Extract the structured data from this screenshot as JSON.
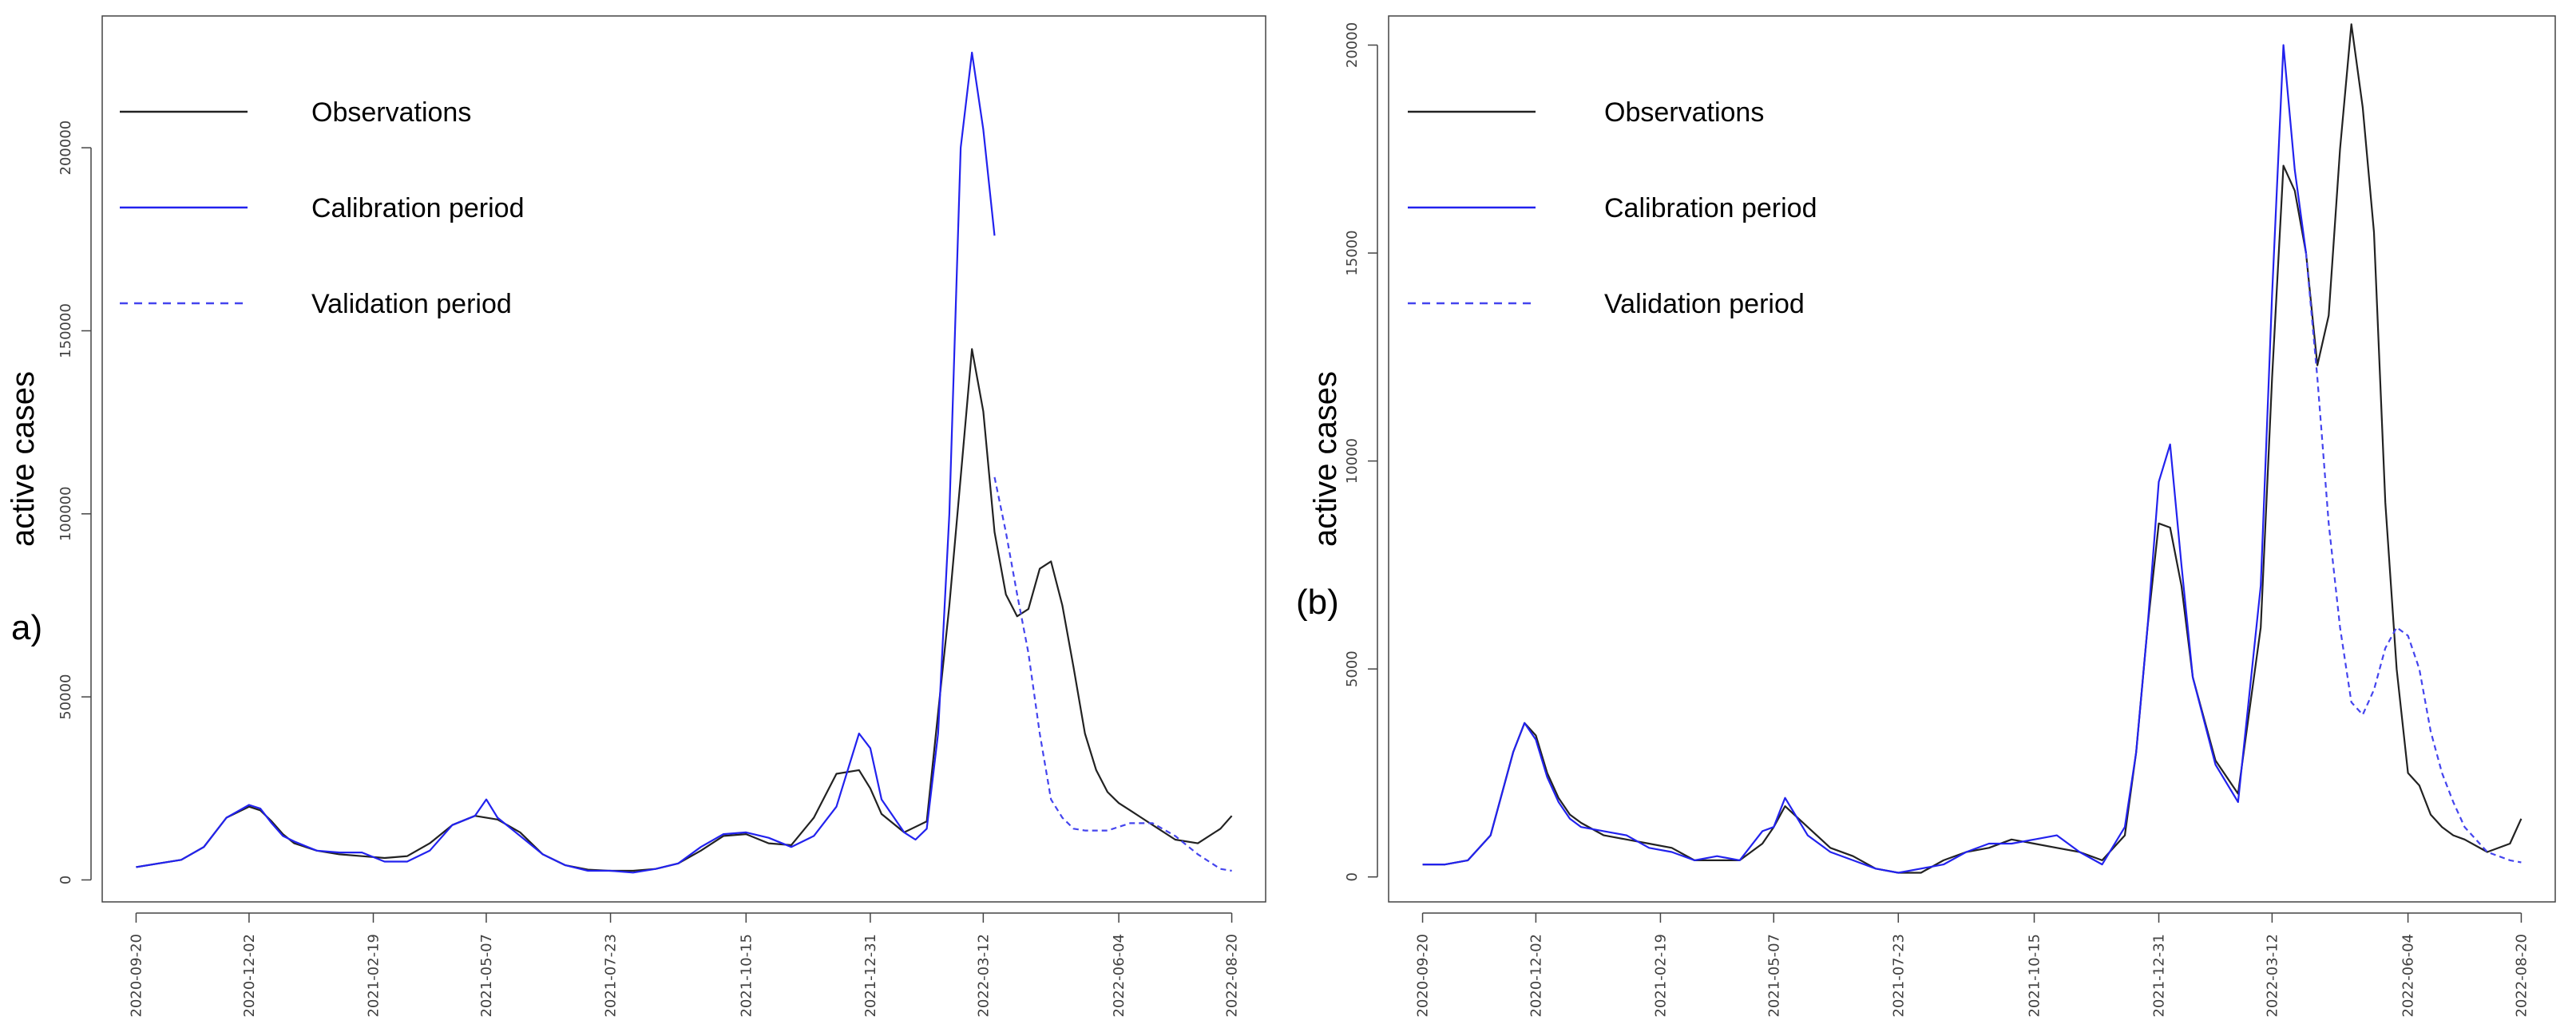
{
  "chart_data": [
    {
      "type": "line",
      "panel_label": "a)",
      "ylabel": "active cases",
      "xlabel": "",
      "title": "",
      "x_ticks": [
        "2020-09-20",
        "2020-12-02",
        "2021-02-19",
        "2021-05-07",
        "2021-07-23",
        "2021-10-15",
        "2021-12-31",
        "2022-03-12",
        "2022-06-04",
        "2022-08-20"
      ],
      "x_tick_index": [
        0,
        10,
        21,
        31,
        42,
        54,
        65,
        75,
        87,
        97
      ],
      "x_range": [
        -3,
        100
      ],
      "ylim": [
        -6000,
        236000
      ],
      "y_ticks": [
        0,
        50000,
        100000,
        150000,
        200000
      ],
      "y_tick_labels": [
        "0",
        "50000",
        "100000",
        "150000",
        "200000"
      ],
      "legend": [
        "Observations",
        "Calibration period",
        "Validation period"
      ],
      "legend_position": "top-left",
      "series": [
        {
          "name": "Observations",
          "style": "solid",
          "color": "#222222",
          "x": [
            0,
            2,
            4,
            6,
            8,
            10,
            11,
            12,
            13,
            14,
            16,
            18,
            20,
            22,
            24,
            26,
            28,
            30,
            32,
            34,
            36,
            38,
            40,
            42,
            44,
            46,
            48,
            50,
            52,
            54,
            56,
            58,
            60,
            62,
            64,
            65,
            66,
            68,
            70,
            72,
            73,
            74,
            75,
            76,
            77,
            78,
            79,
            80,
            81,
            82,
            83,
            84,
            85,
            86,
            87,
            88,
            89,
            90,
            92,
            94,
            96,
            97
          ],
          "values": [
            3500,
            4500,
            5500,
            9000,
            17000,
            20000,
            19000,
            16000,
            12500,
            10000,
            8000,
            7000,
            6500,
            6000,
            6500,
            10000,
            15000,
            17500,
            16500,
            13000,
            7000,
            4000,
            2800,
            2500,
            2500,
            3000,
            4500,
            8000,
            12000,
            12500,
            10000,
            9500,
            17000,
            29000,
            30000,
            25000,
            18000,
            13000,
            16000,
            75000,
            110000,
            145000,
            128000,
            95000,
            78000,
            72000,
            74000,
            85000,
            87000,
            75000,
            58000,
            40000,
            30000,
            24000,
            21000,
            19000,
            17000,
            15000,
            11000,
            10000,
            14000,
            17500
          ]
        },
        {
          "name": "Calibration period",
          "style": "solid",
          "color": "#2222ee",
          "x": [
            0,
            2,
            4,
            6,
            8,
            10,
            11,
            12,
            13,
            14,
            16,
            18,
            20,
            22,
            24,
            26,
            28,
            30,
            31,
            32,
            34,
            36,
            38,
            40,
            42,
            44,
            46,
            48,
            50,
            52,
            54,
            56,
            58,
            60,
            62,
            64,
            65,
            66,
            68,
            69,
            70,
            71,
            72,
            73,
            74,
            75,
            76
          ],
          "values": [
            3500,
            4500,
            5500,
            9000,
            17000,
            20500,
            19500,
            15500,
            12000,
            10500,
            8000,
            7500,
            7500,
            5000,
            5000,
            8000,
            15000,
            17500,
            22000,
            17000,
            12000,
            7000,
            4000,
            2500,
            2500,
            2000,
            3000,
            4500,
            9000,
            12500,
            13000,
            11500,
            9000,
            12000,
            20000,
            40000,
            36000,
            22000,
            13000,
            11000,
            14000,
            40000,
            100000,
            200000,
            226000,
            205000,
            176000
          ]
        },
        {
          "name": "Validation period",
          "style": "dashed",
          "color": "#4444ee",
          "x": [
            76,
            77,
            78,
            79,
            80,
            81,
            82,
            83,
            84,
            86,
            88,
            90,
            92,
            94,
            96,
            97
          ],
          "values": [
            110000,
            95000,
            78000,
            62000,
            40000,
            22000,
            17000,
            14000,
            13500,
            13500,
            15500,
            15500,
            12000,
            7000,
            3000,
            2500
          ]
        }
      ]
    },
    {
      "type": "line",
      "panel_label": "(b)",
      "ylabel": "active cases",
      "xlabel": "",
      "title": "",
      "x_ticks": [
        "2020-09-20",
        "2020-12-02",
        "2021-02-19",
        "2021-05-07",
        "2021-07-23",
        "2021-10-15",
        "2021-12-31",
        "2022-03-12",
        "2022-06-04",
        "2022-08-20"
      ],
      "x_tick_index": [
        0,
        10,
        21,
        31,
        42,
        54,
        65,
        75,
        87,
        97
      ],
      "x_range": [
        -3,
        100
      ],
      "ylim": [
        -600,
        20700
      ],
      "y_ticks": [
        0,
        5000,
        10000,
        15000,
        20000
      ],
      "y_tick_labels": [
        "0",
        "5000",
        "10000",
        "15000",
        "20000"
      ],
      "legend": [
        "Observations",
        "Calibration period",
        "Validation period"
      ],
      "legend_position": "top-left",
      "series": [
        {
          "name": "Observations",
          "style": "solid",
          "color": "#222222",
          "x": [
            0,
            2,
            4,
            6,
            8,
            9,
            10,
            11,
            12,
            13,
            14,
            16,
            18,
            20,
            22,
            24,
            26,
            28,
            30,
            31,
            32,
            34,
            36,
            38,
            40,
            42,
            44,
            46,
            48,
            50,
            52,
            54,
            56,
            58,
            60,
            62,
            63,
            64,
            65,
            66,
            67,
            68,
            70,
            72,
            74,
            75,
            76,
            77,
            78,
            79,
            80,
            81,
            82,
            83,
            84,
            85,
            86,
            87,
            88,
            89,
            90,
            91,
            92,
            94,
            96,
            97
          ],
          "values": [
            300,
            300,
            400,
            1000,
            3000,
            3700,
            3400,
            2500,
            1900,
            1500,
            1300,
            1000,
            900,
            800,
            700,
            400,
            400,
            400,
            800,
            1200,
            1700,
            1200,
            700,
            500,
            200,
            100,
            100,
            400,
            600,
            700,
            900,
            800,
            700,
            600,
            400,
            1000,
            3000,
            6000,
            8500,
            8400,
            7000,
            4800,
            2800,
            2000,
            6000,
            12000,
            17100,
            16500,
            15000,
            12300,
            13500,
            17500,
            20500,
            18500,
            15500,
            9000,
            5000,
            2500,
            2200,
            1500,
            1200,
            1000,
            900,
            600,
            800,
            1400
          ]
        },
        {
          "name": "Calibration period",
          "style": "solid",
          "color": "#2222ee",
          "x": [
            0,
            2,
            4,
            6,
            8,
            9,
            10,
            11,
            12,
            13,
            14,
            16,
            18,
            20,
            22,
            24,
            26,
            28,
            30,
            31,
            32,
            34,
            36,
            38,
            40,
            42,
            44,
            46,
            48,
            50,
            52,
            54,
            56,
            58,
            60,
            62,
            63,
            64,
            65,
            66,
            67,
            68,
            70,
            72,
            74,
            75,
            76,
            77,
            78
          ],
          "values": [
            300,
            300,
            400,
            1000,
            3000,
            3700,
            3300,
            2400,
            1800,
            1400,
            1200,
            1100,
            1000,
            700,
            600,
            400,
            500,
            400,
            1100,
            1200,
            1900,
            1000,
            600,
            400,
            200,
            100,
            200,
            300,
            600,
            800,
            800,
            900,
            1000,
            600,
            300,
            1200,
            3000,
            6000,
            9500,
            10400,
            7500,
            4800,
            2700,
            1800,
            7000,
            14000,
            20000,
            17000,
            15000
          ]
        },
        {
          "name": "Validation period",
          "style": "dashed",
          "color": "#4444ee",
          "x": [
            78,
            79,
            80,
            81,
            82,
            83,
            84,
            85,
            86,
            87,
            88,
            89,
            90,
            91,
            92,
            94,
            96,
            97
          ],
          "values": [
            15000,
            12000,
            8500,
            6000,
            4200,
            3900,
            4500,
            5500,
            6000,
            5800,
            5000,
            3500,
            2500,
            1800,
            1200,
            600,
            400,
            350
          ]
        }
      ]
    }
  ]
}
